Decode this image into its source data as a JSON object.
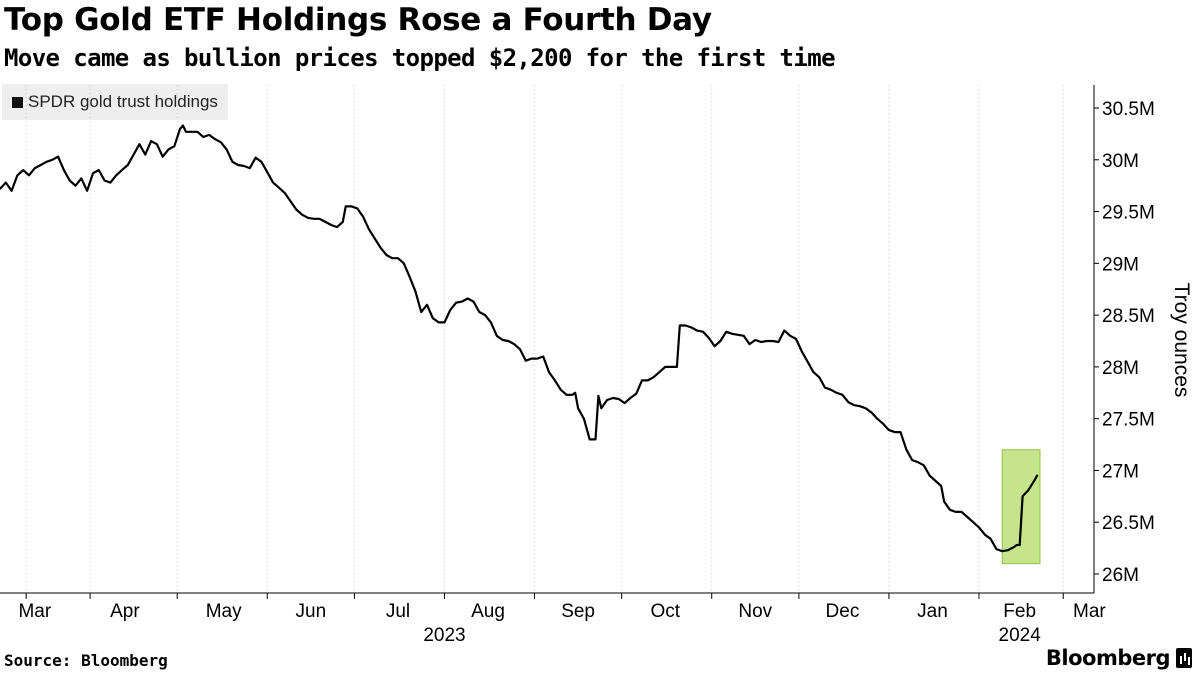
{
  "header": {
    "title": "Top Gold ETF Holdings Rose a Fourth Day",
    "subtitle": "Move came as bullion prices topped $2,200 for the first time"
  },
  "footer": {
    "source": "Source: Bloomberg",
    "brand": "Bloomberg"
  },
  "chart_data": {
    "type": "line",
    "title": "Top Gold ETF Holdings Rose a Fourth Day",
    "subtitle": "Move came as bullion prices topped $2,200 for the first time",
    "ylabel": "Troy ounces",
    "xlabel": "",
    "ylim": [
      26000000,
      30700000
    ],
    "yticks": [
      {
        "value": 26000000,
        "label": "26M"
      },
      {
        "value": 26500000,
        "label": "26.5M"
      },
      {
        "value": 27000000,
        "label": "27M"
      },
      {
        "value": 27500000,
        "label": "27.5M"
      },
      {
        "value": 28000000,
        "label": "28M"
      },
      {
        "value": 28500000,
        "label": "28.5M"
      },
      {
        "value": 29000000,
        "label": "29M"
      },
      {
        "value": 29500000,
        "label": "29.5M"
      },
      {
        "value": 30000000,
        "label": "30M"
      },
      {
        "value": 30500000,
        "label": "30.5M"
      }
    ],
    "x_domain": [
      0,
      370
    ],
    "month_ticks": [
      {
        "label": "Mar",
        "tick": 9,
        "label_pos": 12
      },
      {
        "label": "Apr",
        "tick": 31,
        "label_pos": 43
      },
      {
        "label": "May",
        "tick": 61,
        "label_pos": 77
      },
      {
        "label": "Jun",
        "tick": 92,
        "label_pos": 107
      },
      {
        "label": "Jul",
        "tick": 122,
        "label_pos": 137
      },
      {
        "label": "Aug",
        "tick": 153,
        "label_pos": 168
      },
      {
        "label": "Sep",
        "tick": 184,
        "label_pos": 199
      },
      {
        "label": "Oct",
        "tick": 214,
        "label_pos": 229
      },
      {
        "label": "Nov",
        "tick": 245,
        "label_pos": 260
      },
      {
        "label": "Dec",
        "tick": 275,
        "label_pos": 290
      },
      {
        "label": "Jan",
        "tick": 306,
        "label_pos": 321
      },
      {
        "label": "Feb",
        "tick": 337,
        "label_pos": 351
      },
      {
        "label": "Mar",
        "tick": 366,
        "label_pos": 375
      }
    ],
    "year_labels": [
      {
        "label": "2023",
        "pos": 153
      },
      {
        "label": "2024",
        "pos": 351
      }
    ],
    "series": [
      {
        "name": "SPDR gold trust holdings",
        "color": "#000000",
        "points": [
          [
            0,
            29720000
          ],
          [
            2,
            29780000
          ],
          [
            4,
            29700000
          ],
          [
            6,
            29850000
          ],
          [
            8,
            29900000
          ],
          [
            10,
            29850000
          ],
          [
            12,
            29920000
          ],
          [
            14,
            29950000
          ],
          [
            16,
            29980000
          ],
          [
            18,
            30000000
          ],
          [
            20,
            30030000
          ],
          [
            22,
            29900000
          ],
          [
            24,
            29800000
          ],
          [
            26,
            29750000
          ],
          [
            28,
            29820000
          ],
          [
            30,
            29700000
          ],
          [
            32,
            29870000
          ],
          [
            34,
            29900000
          ],
          [
            36,
            29800000
          ],
          [
            38,
            29780000
          ],
          [
            40,
            29850000
          ],
          [
            42,
            29900000
          ],
          [
            44,
            29950000
          ],
          [
            46,
            30050000
          ],
          [
            48,
            30150000
          ],
          [
            50,
            30050000
          ],
          [
            52,
            30180000
          ],
          [
            54,
            30150000
          ],
          [
            56,
            30030000
          ],
          [
            58,
            30100000
          ],
          [
            60,
            30130000
          ],
          [
            62,
            30300000
          ],
          [
            63,
            30330000
          ],
          [
            64,
            30270000
          ],
          [
            66,
            30270000
          ],
          [
            68,
            30270000
          ],
          [
            70,
            30220000
          ],
          [
            72,
            30240000
          ],
          [
            74,
            30200000
          ],
          [
            76,
            30170000
          ],
          [
            78,
            30100000
          ],
          [
            80,
            29980000
          ],
          [
            82,
            29950000
          ],
          [
            84,
            29940000
          ],
          [
            86,
            29920000
          ],
          [
            88,
            30020000
          ],
          [
            90,
            29980000
          ],
          [
            92,
            29880000
          ],
          [
            94,
            29780000
          ],
          [
            96,
            29730000
          ],
          [
            98,
            29680000
          ],
          [
            100,
            29600000
          ],
          [
            102,
            29520000
          ],
          [
            104,
            29470000
          ],
          [
            106,
            29440000
          ],
          [
            108,
            29430000
          ],
          [
            110,
            29430000
          ],
          [
            112,
            29400000
          ],
          [
            114,
            29370000
          ],
          [
            116,
            29350000
          ],
          [
            118,
            29400000
          ],
          [
            119,
            29550000
          ],
          [
            121,
            29550000
          ],
          [
            123,
            29530000
          ],
          [
            125,
            29450000
          ],
          [
            127,
            29330000
          ],
          [
            129,
            29240000
          ],
          [
            131,
            29150000
          ],
          [
            133,
            29080000
          ],
          [
            135,
            29050000
          ],
          [
            137,
            29050000
          ],
          [
            139,
            29000000
          ],
          [
            141,
            28870000
          ],
          [
            143,
            28730000
          ],
          [
            145,
            28530000
          ],
          [
            147,
            28600000
          ],
          [
            149,
            28470000
          ],
          [
            151,
            28430000
          ],
          [
            153,
            28430000
          ],
          [
            155,
            28550000
          ],
          [
            157,
            28620000
          ],
          [
            159,
            28630000
          ],
          [
            161,
            28660000
          ],
          [
            163,
            28630000
          ],
          [
            165,
            28530000
          ],
          [
            167,
            28500000
          ],
          [
            169,
            28430000
          ],
          [
            171,
            28300000
          ],
          [
            173,
            28260000
          ],
          [
            175,
            28250000
          ],
          [
            177,
            28220000
          ],
          [
            179,
            28170000
          ],
          [
            181,
            28060000
          ],
          [
            183,
            28080000
          ],
          [
            185,
            28080000
          ],
          [
            187,
            28100000
          ],
          [
            189,
            27950000
          ],
          [
            191,
            27870000
          ],
          [
            193,
            27780000
          ],
          [
            195,
            27730000
          ],
          [
            197,
            27730000
          ],
          [
            198,
            27750000
          ],
          [
            199,
            27600000
          ],
          [
            201,
            27500000
          ],
          [
            203,
            27300000
          ],
          [
            205,
            27300000
          ],
          [
            206,
            27720000
          ],
          [
            207,
            27600000
          ],
          [
            209,
            27680000
          ],
          [
            211,
            27700000
          ],
          [
            213,
            27690000
          ],
          [
            215,
            27650000
          ],
          [
            217,
            27700000
          ],
          [
            219,
            27740000
          ],
          [
            221,
            27870000
          ],
          [
            223,
            27870000
          ],
          [
            225,
            27900000
          ],
          [
            227,
            27950000
          ],
          [
            229,
            28000000
          ],
          [
            231,
            28000000
          ],
          [
            233,
            28000000
          ],
          [
            234,
            28400000
          ],
          [
            236,
            28400000
          ],
          [
            238,
            28380000
          ],
          [
            240,
            28350000
          ],
          [
            242,
            28340000
          ],
          [
            244,
            28280000
          ],
          [
            246,
            28200000
          ],
          [
            248,
            28250000
          ],
          [
            250,
            28340000
          ],
          [
            252,
            28320000
          ],
          [
            254,
            28310000
          ],
          [
            256,
            28300000
          ],
          [
            258,
            28220000
          ],
          [
            260,
            28260000
          ],
          [
            262,
            28240000
          ],
          [
            264,
            28250000
          ],
          [
            266,
            28250000
          ],
          [
            268,
            28240000
          ],
          [
            270,
            28350000
          ],
          [
            272,
            28300000
          ],
          [
            274,
            28270000
          ],
          [
            276,
            28150000
          ],
          [
            278,
            28050000
          ],
          [
            280,
            27950000
          ],
          [
            282,
            27900000
          ],
          [
            284,
            27800000
          ],
          [
            286,
            27780000
          ],
          [
            288,
            27750000
          ],
          [
            290,
            27730000
          ],
          [
            292,
            27660000
          ],
          [
            294,
            27630000
          ],
          [
            296,
            27620000
          ],
          [
            298,
            27600000
          ],
          [
            300,
            27560000
          ],
          [
            302,
            27500000
          ],
          [
            304,
            27450000
          ],
          [
            306,
            27390000
          ],
          [
            308,
            27370000
          ],
          [
            310,
            27370000
          ],
          [
            312,
            27200000
          ],
          [
            314,
            27100000
          ],
          [
            316,
            27080000
          ],
          [
            318,
            27050000
          ],
          [
            320,
            26950000
          ],
          [
            322,
            26900000
          ],
          [
            324,
            26850000
          ],
          [
            325,
            26700000
          ],
          [
            327,
            26620000
          ],
          [
            329,
            26600000
          ],
          [
            331,
            26600000
          ],
          [
            333,
            26550000
          ],
          [
            335,
            26500000
          ],
          [
            337,
            26450000
          ],
          [
            339,
            26380000
          ],
          [
            341,
            26340000
          ],
          [
            343,
            26240000
          ],
          [
            345,
            26220000
          ],
          [
            347,
            26230000
          ],
          [
            349,
            26260000
          ],
          [
            350,
            26280000
          ],
          [
            351,
            26280000
          ],
          [
            352,
            26750000
          ],
          [
            354,
            26810000
          ],
          [
            356,
            26900000
          ],
          [
            357,
            26950000
          ]
        ]
      }
    ],
    "highlight": {
      "x_range": [
        345,
        358
      ],
      "y_range": [
        26100000,
        27200000
      ],
      "fill": "#c6e48b",
      "stroke": "#8fc447"
    },
    "grid": "vertical dotted at month ticks",
    "legend_position": "top-left",
    "axis_position": "right"
  }
}
